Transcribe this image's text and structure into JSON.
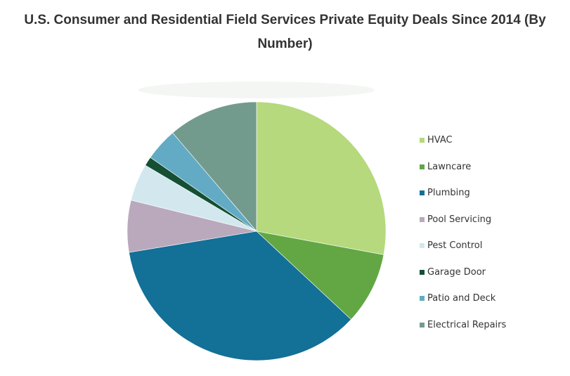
{
  "title_line1": "U.S. Consumer and Residential Field Services Private Equity Deals Since 2014 (By",
  "title_line2": "Number)",
  "chart_data": {
    "type": "pie",
    "title": "U.S. Consumer and Residential Field Services Private Equity Deals Since 2014 (By Number)",
    "legend_position": "right",
    "start_angle_deg": 0,
    "direction": "clockwise",
    "slices": [
      {
        "label": "HVAC",
        "value": 29.3,
        "color": "#b5d97c"
      },
      {
        "label": "Lawncare",
        "value": 9.5,
        "color": "#62a744"
      },
      {
        "label": "Plumbing",
        "value": 37.2,
        "color": "#137096"
      },
      {
        "label": "Pool Servicing",
        "value": 6.8,
        "color": "#baa8bd"
      },
      {
        "label": "Pest Control",
        "value": 4.9,
        "color": "#d2e8ee"
      },
      {
        "label": "Garage Door",
        "value": 1.2,
        "color": "#154f34"
      },
      {
        "label": "Patio and Deck",
        "value": 4.3,
        "color": "#63abc4"
      },
      {
        "label": "Electrical Repairs",
        "value": 11.8,
        "color": "#739b8d"
      }
    ]
  }
}
